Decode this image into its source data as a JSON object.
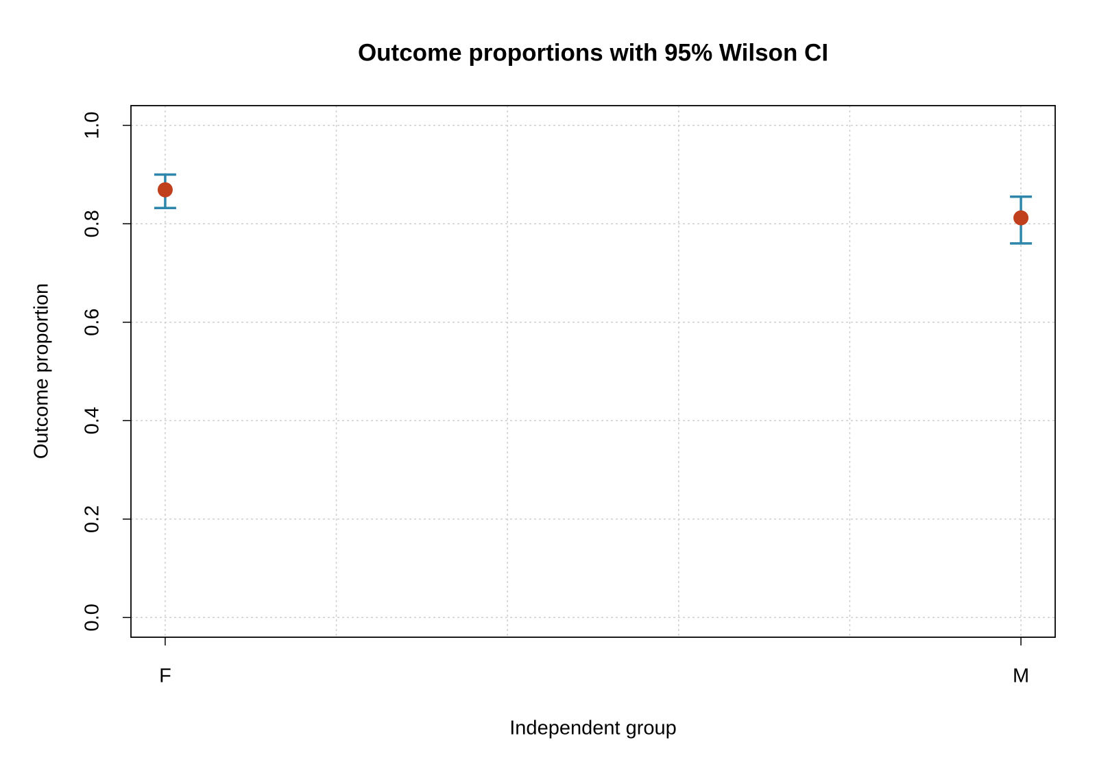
{
  "chart_data": {
    "type": "errorbar",
    "title": "Outcome proportions with 95% Wilson CI",
    "x_label": "Independent group",
    "y_label": "Outcome proportion",
    "x": [
      1,
      2
    ],
    "xticks": [
      {
        "value": 1,
        "label": "F"
      },
      {
        "value": 2,
        "label": "M"
      }
    ],
    "xgrid": [
      1,
      1.2,
      1.4,
      1.6,
      1.8,
      2
    ],
    "xlim": [
      0.96,
      2.04
    ],
    "ylim": [
      -0.04,
      1.04
    ],
    "yticks": [
      {
        "value": 0,
        "label": "0.0"
      },
      {
        "value": 0.2,
        "label": "0.2"
      },
      {
        "value": 0.4,
        "label": "0.4"
      },
      {
        "value": 0.6,
        "label": "0.6"
      },
      {
        "value": 0.8,
        "label": "0.8"
      },
      {
        "value": 1,
        "label": "1.0"
      }
    ],
    "grid": true,
    "series": [
      {
        "values": [
          0.869,
          0.812
        ],
        "lower": [
          0.832,
          0.76
        ],
        "upper": [
          0.9,
          0.855
        ],
        "color": "#c0401e",
        "error_color": "#2e86ab"
      }
    ]
  }
}
